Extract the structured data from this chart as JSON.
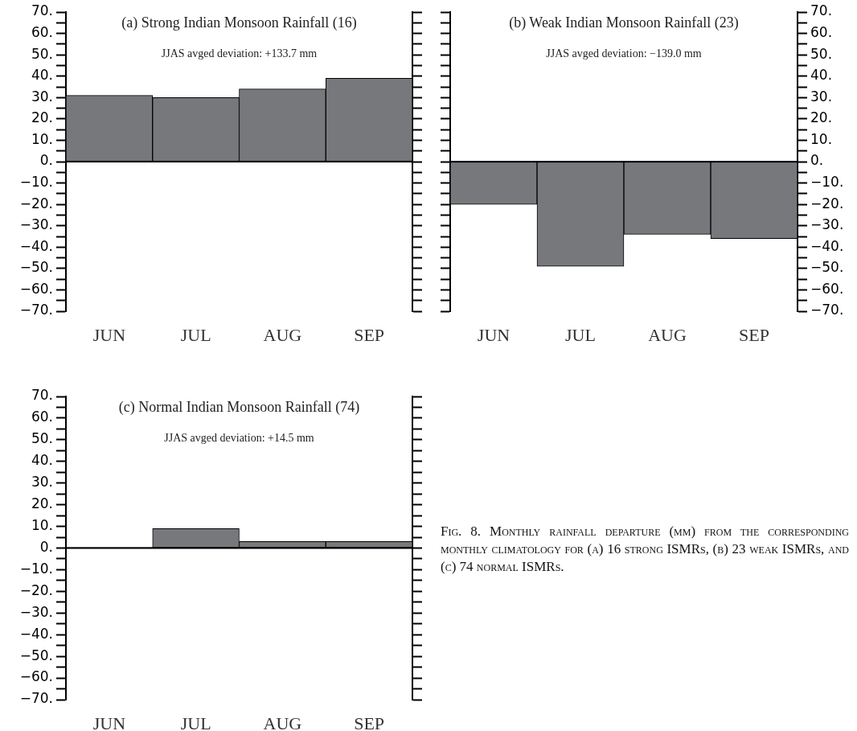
{
  "chart_data": [
    {
      "type": "bar",
      "title": "(a) Strong Indian Monsoon Rainfall (16)",
      "annotations": [
        "JJAS avged deviation: +133.7 mm"
      ],
      "categories": [
        "JUN",
        "JUL",
        "AUG",
        "SEP"
      ],
      "series": [
        {
          "color": "#77787c",
          "values": [
            31,
            30,
            34,
            39
          ]
        }
      ],
      "ylim": [
        -70,
        70
      ],
      "yticks": [
        {
          "value": -70,
          "label": "−70."
        },
        {
          "value": -65,
          "label": null
        },
        {
          "value": -60,
          "label": "−60."
        },
        {
          "value": -55,
          "label": null
        },
        {
          "value": -50,
          "label": "−50."
        },
        {
          "value": -45,
          "label": null
        },
        {
          "value": -40,
          "label": "−40."
        },
        {
          "value": -35,
          "label": null
        },
        {
          "value": -30,
          "label": "−30."
        },
        {
          "value": -25,
          "label": null
        },
        {
          "value": -20,
          "label": "−20."
        },
        {
          "value": -15,
          "label": null
        },
        {
          "value": -10,
          "label": "−10."
        },
        {
          "value": -5,
          "label": null
        },
        {
          "value": 0,
          "label": "0."
        },
        {
          "value": 5,
          "label": null
        },
        {
          "value": 10,
          "label": "10."
        },
        {
          "value": 15,
          "label": null
        },
        {
          "value": 20,
          "label": "20."
        },
        {
          "value": 25,
          "label": null
        },
        {
          "value": 30,
          "label": "30."
        },
        {
          "value": 35,
          "label": null
        },
        {
          "value": 40,
          "label": "40."
        },
        {
          "value": 45,
          "label": null
        },
        {
          "value": 50,
          "label": "50."
        },
        {
          "value": 55,
          "label": null
        },
        {
          "value": 60,
          "label": "60."
        },
        {
          "value": 65,
          "label": null
        },
        {
          "value": 70,
          "label": "70."
        }
      ]
    },
    {
      "type": "bar",
      "title": "(b) Weak Indian Monsoon Rainfall (23)",
      "annotations": [
        "JJAS avged deviation: −139.0 mm"
      ],
      "categories": [
        "JUN",
        "JUL",
        "AUG",
        "SEP"
      ],
      "series": [
        {
          "color": "#77787c",
          "values": [
            -20,
            -49,
            -34,
            -36
          ],
          "axis": "y2"
        }
      ],
      "y2lim": [
        -70,
        70
      ],
      "y2ticks": [
        {
          "value": -70,
          "label": "−70."
        },
        {
          "value": -65,
          "label": null
        },
        {
          "value": -60,
          "label": "−60."
        },
        {
          "value": -55,
          "label": null
        },
        {
          "value": -50,
          "label": "−50."
        },
        {
          "value": -45,
          "label": null
        },
        {
          "value": -40,
          "label": "−40."
        },
        {
          "value": -35,
          "label": null
        },
        {
          "value": -30,
          "label": "−30."
        },
        {
          "value": -25,
          "label": null
        },
        {
          "value": -20,
          "label": "−20."
        },
        {
          "value": -15,
          "label": null
        },
        {
          "value": -10,
          "label": "−10."
        },
        {
          "value": -5,
          "label": null
        },
        {
          "value": 0,
          "label": "0."
        },
        {
          "value": 5,
          "label": null
        },
        {
          "value": 10,
          "label": "10."
        },
        {
          "value": 15,
          "label": null
        },
        {
          "value": 20,
          "label": "20."
        },
        {
          "value": 25,
          "label": null
        },
        {
          "value": 30,
          "label": "30."
        },
        {
          "value": 35,
          "label": null
        },
        {
          "value": 40,
          "label": "40."
        },
        {
          "value": 45,
          "label": null
        },
        {
          "value": 50,
          "label": "50."
        },
        {
          "value": 55,
          "label": null
        },
        {
          "value": 60,
          "label": "60."
        },
        {
          "value": 65,
          "label": null
        },
        {
          "value": 70,
          "label": "70."
        }
      ]
    },
    {
      "type": "bar",
      "title": "(c) Normal Indian Monsoon Rainfall (74)",
      "annotations": [
        "JJAS avged deviation: +14.5 mm"
      ],
      "categories": [
        "JUN",
        "JUL",
        "AUG",
        "SEP"
      ],
      "series": [
        {
          "color": "#77787c",
          "values": [
            0.3,
            9,
            3,
            3
          ]
        }
      ],
      "ylim": [
        -70,
        70
      ],
      "yticks": [
        {
          "value": -70,
          "label": "−70."
        },
        {
          "value": -65,
          "label": null
        },
        {
          "value": -60,
          "label": "−60."
        },
        {
          "value": -55,
          "label": null
        },
        {
          "value": -50,
          "label": "−50."
        },
        {
          "value": -45,
          "label": null
        },
        {
          "value": -40,
          "label": "−40."
        },
        {
          "value": -35,
          "label": null
        },
        {
          "value": -30,
          "label": "−30."
        },
        {
          "value": -25,
          "label": null
        },
        {
          "value": -20,
          "label": "−20."
        },
        {
          "value": -15,
          "label": null
        },
        {
          "value": -10,
          "label": "−10."
        },
        {
          "value": -5,
          "label": null
        },
        {
          "value": 0,
          "label": "0."
        },
        {
          "value": 5,
          "label": null
        },
        {
          "value": 10,
          "label": "10."
        },
        {
          "value": 15,
          "label": null
        },
        {
          "value": 20,
          "label": "20."
        },
        {
          "value": 25,
          "label": null
        },
        {
          "value": 30,
          "label": "30."
        },
        {
          "value": 35,
          "label": null
        },
        {
          "value": 40,
          "label": "40."
        },
        {
          "value": 45,
          "label": null
        },
        {
          "value": 50,
          "label": "50."
        },
        {
          "value": 55,
          "label": null
        },
        {
          "value": 60,
          "label": "60."
        },
        {
          "value": 65,
          "label": null
        },
        {
          "value": 70,
          "label": "70."
        }
      ]
    },
    {
      "type": "other",
      "annotations": [
        "Fig. 8. Monthly rainfall departure (mm) from the corresponding monthly climatology for (a) 16 strong ISMRs, (b) 23 weak ISMRs, and (c) 74 normal ISMRs."
      ]
    }
  ]
}
